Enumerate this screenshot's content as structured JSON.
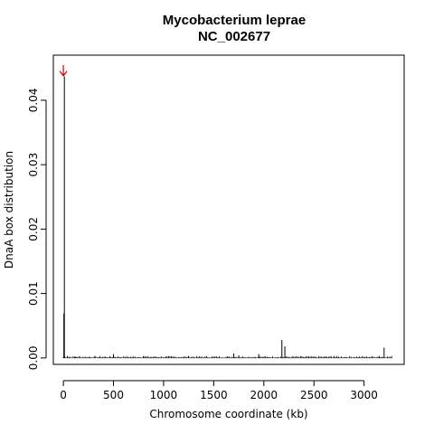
{
  "chart_data": {
    "type": "bar",
    "title": "Mycobacterium leprae",
    "subtitle": "NC_002677",
    "xlabel": "Chromosome coordinate (kb)",
    "ylabel": "DnaA box distribution",
    "xlim": [
      -100,
      3400
    ],
    "ylim": [
      -0.001,
      0.047
    ],
    "x_ticks": [
      0,
      500,
      1000,
      1500,
      2000,
      2500,
      3000
    ],
    "x_tick_labels": [
      "0",
      "500",
      "1000",
      "1500",
      "2000",
      "2500",
      "3000"
    ],
    "y_ticks": [
      0.0,
      0.01,
      0.02,
      0.03,
      0.04
    ],
    "y_tick_labels": [
      "0.00",
      "0.01",
      "0.02",
      "0.03",
      "0.04"
    ],
    "grid": false,
    "legend": "none",
    "origin_marker": {
      "x": 0,
      "y": 0.0438,
      "symbol": "down-arrow",
      "color": "#cc0000"
    },
    "series": [
      {
        "color": "#000000",
        "x": [
          5,
          10,
          40,
          120,
          500,
          800,
          1250,
          1700,
          1750,
          1950,
          2180,
          2210,
          2700,
          3150,
          3200
        ],
        "values": [
          0.0069,
          0.0437,
          0.0003,
          0.0002,
          0.0006,
          0.0003,
          0.0003,
          0.0007,
          0.0004,
          0.0006,
          0.0028,
          0.0018,
          0.0003,
          0.0003,
          0.0016
        ]
      }
    ]
  }
}
